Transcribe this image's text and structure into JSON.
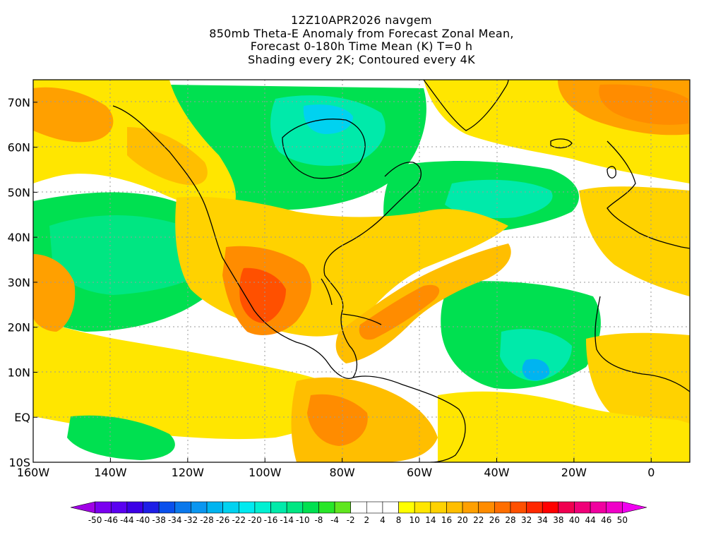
{
  "title": {
    "line1": "12Z10APR2026 navgem",
    "line2": "850mb Theta-E Anomaly from Forecast Zonal Mean,",
    "line3": "Forecast 0-180h Time Mean (K) T=0 h",
    "line4": "Shading every 2K; Contoured every 4K"
  },
  "map": {
    "lon_range": [
      -160,
      10
    ],
    "lat_range": [
      -10,
      75
    ],
    "lat_ticks": [
      {
        "value": 70,
        "label": "70N"
      },
      {
        "value": 60,
        "label": "60N"
      },
      {
        "value": 50,
        "label": "50N"
      },
      {
        "value": 40,
        "label": "40N"
      },
      {
        "value": 30,
        "label": "30N"
      },
      {
        "value": 20,
        "label": "20N"
      },
      {
        "value": 10,
        "label": "10N"
      },
      {
        "value": 0,
        "label": "EQ"
      },
      {
        "value": -10,
        "label": "10S"
      }
    ],
    "lon_ticks": [
      {
        "value": -160,
        "label": "160W"
      },
      {
        "value": -140,
        "label": "140W"
      },
      {
        "value": -120,
        "label": "120W"
      },
      {
        "value": -100,
        "label": "100W"
      },
      {
        "value": -80,
        "label": "80W"
      },
      {
        "value": -60,
        "label": "60W"
      },
      {
        "value": -40,
        "label": "40W"
      },
      {
        "value": -20,
        "label": "20W"
      },
      {
        "value": 0,
        "label": "0"
      }
    ],
    "colors": {
      "land_outline": "#000000",
      "grid": "#9a9a9a"
    }
  },
  "colorbar": {
    "labels": [
      "-50",
      "-46",
      "-44",
      "-40",
      "-38",
      "-34",
      "-32",
      "-28",
      "-26",
      "-22",
      "-20",
      "-16",
      "-14",
      "-10",
      "-8",
      "-4",
      "-2",
      "2",
      "4",
      "8",
      "10",
      "14",
      "16",
      "20",
      "22",
      "26",
      "28",
      "32",
      "34",
      "38",
      "40",
      "44",
      "46",
      "50"
    ],
    "colors": [
      "#a000e6",
      "#7a00f0",
      "#5a00f0",
      "#3c00e6",
      "#1e1ee6",
      "#0a50ec",
      "#0a78ec",
      "#0a96f0",
      "#00b4f0",
      "#00d2f0",
      "#00eaf0",
      "#00f0d2",
      "#00eaaa",
      "#00e682",
      "#00e050",
      "#28e628",
      "#60e61e",
      "#ffffff",
      "#ffffff",
      "#ffffff",
      "#ffff00",
      "#ffe600",
      "#ffd200",
      "#ffbe00",
      "#ffa000",
      "#ff8c00",
      "#ff6e00",
      "#ff5000",
      "#ff2800",
      "#ff0000",
      "#f00050",
      "#f00078",
      "#f000a0",
      "#f000c8",
      "#f000f0"
    ]
  }
}
